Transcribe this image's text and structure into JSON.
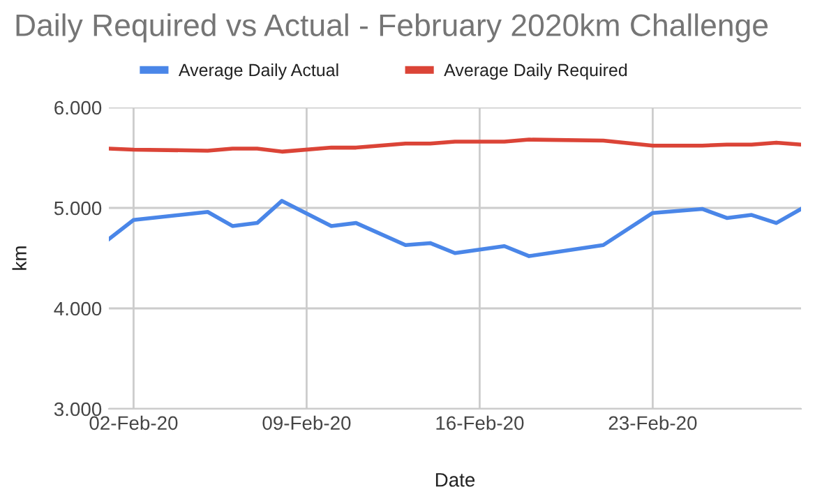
{
  "chart_data": {
    "type": "line",
    "title": "Daily Required vs Actual - February 2020km Challenge",
    "xlabel": "Date",
    "ylabel": "km",
    "x": [
      "2020-02-01",
      "2020-02-02",
      "2020-02-05",
      "2020-02-06",
      "2020-02-07",
      "2020-02-08",
      "2020-02-10",
      "2020-02-11",
      "2020-02-13",
      "2020-02-14",
      "2020-02-15",
      "2020-02-17",
      "2020-02-18",
      "2020-02-21",
      "2020-02-23",
      "2020-02-25",
      "2020-02-26",
      "2020-02-27",
      "2020-02-28",
      "2020-02-29"
    ],
    "series": [
      {
        "name": "Average Daily Actual",
        "color": "#4a86e8",
        "values": [
          4.69,
          4.88,
          4.96,
          4.82,
          4.85,
          5.07,
          4.82,
          4.85,
          4.63,
          4.65,
          4.55,
          4.62,
          4.52,
          4.63,
          4.95,
          4.99,
          4.9,
          4.93,
          4.85,
          4.99
        ]
      },
      {
        "name": "Average Daily Required",
        "color": "#db4437",
        "values": [
          5.59,
          5.58,
          5.57,
          5.59,
          5.59,
          5.56,
          5.6,
          5.6,
          5.64,
          5.64,
          5.66,
          5.66,
          5.68,
          5.67,
          5.62,
          5.62,
          5.63,
          5.63,
          5.65,
          5.63
        ]
      }
    ],
    "xlim": [
      "2020-02-01",
      "2020-02-29"
    ],
    "xticks": [
      {
        "value": "2020-02-02",
        "label": "02-Feb-20"
      },
      {
        "value": "2020-02-09",
        "label": "09-Feb-20"
      },
      {
        "value": "2020-02-16",
        "label": "16-Feb-20"
      },
      {
        "value": "2020-02-23",
        "label": "23-Feb-20"
      }
    ],
    "ylim": [
      3,
      6
    ],
    "yticks": [
      {
        "value": 3,
        "label": "3.000"
      },
      {
        "value": 4,
        "label": "4.000"
      },
      {
        "value": 5,
        "label": "5.000"
      },
      {
        "value": 6,
        "label": "6.000"
      }
    ],
    "grid": true,
    "legend": "top",
    "marker": "none",
    "line_style": "solid"
  }
}
